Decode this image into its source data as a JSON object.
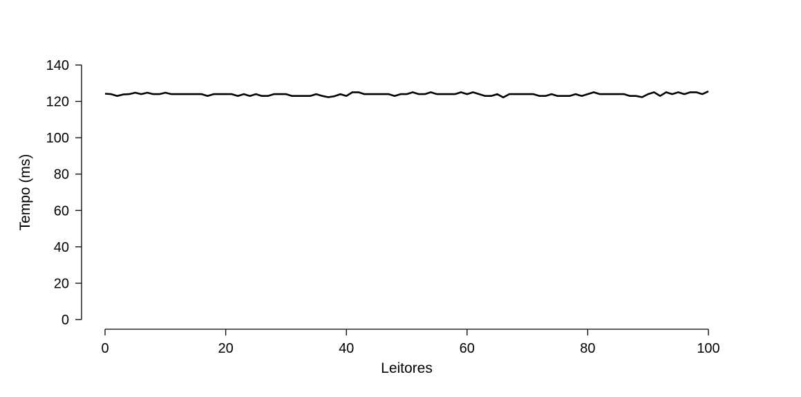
{
  "chart_data": {
    "type": "line",
    "title": "",
    "xlabel": "Leitores",
    "ylabel": "Tempo (ms)",
    "xlim": [
      0,
      100
    ],
    "ylim": [
      0,
      140
    ],
    "xticks": [
      0,
      20,
      40,
      60,
      80,
      100
    ],
    "yticks": [
      0,
      20,
      40,
      60,
      80,
      100,
      120,
      140
    ],
    "xtick_labels": [
      "0",
      "20",
      "40",
      "60",
      "80",
      "100"
    ],
    "ytick_labels": [
      "0",
      "20",
      "40",
      "60",
      "80",
      "100",
      "120",
      "140"
    ],
    "grid": false,
    "line_color": "#000000",
    "series": [
      {
        "x": [
          0,
          1,
          2,
          3,
          4,
          5,
          6,
          7,
          8,
          9,
          10,
          11,
          12,
          13,
          14,
          15,
          16,
          17,
          18,
          19,
          20,
          21,
          22,
          23,
          24,
          25,
          26,
          27,
          28,
          29,
          30,
          31,
          32,
          33,
          34,
          35,
          36,
          37,
          38,
          39,
          40,
          41,
          42,
          43,
          44,
          45,
          46,
          47,
          48,
          49,
          50,
          51,
          52,
          53,
          54,
          55,
          56,
          57,
          58,
          59,
          60,
          61,
          62,
          63,
          64,
          65,
          66,
          67,
          68,
          69,
          70,
          71,
          72,
          73,
          74,
          75,
          76,
          77,
          78,
          79,
          80,
          81,
          82,
          83,
          84,
          85,
          86,
          87,
          88,
          89,
          90,
          91,
          92,
          93,
          94,
          95,
          96,
          97,
          98,
          99,
          100
        ],
        "values": [
          124.2,
          124.0,
          123.0,
          123.8,
          124.0,
          124.8,
          124.0,
          124.8,
          124.0,
          124.0,
          124.8,
          124.0,
          124.0,
          124.0,
          124.0,
          124.0,
          124.0,
          123.0,
          124.0,
          124.0,
          124.0,
          124.0,
          123.0,
          124.0,
          123.0,
          124.0,
          123.0,
          123.0,
          124.0,
          124.0,
          124.0,
          123.0,
          123.0,
          123.0,
          123.0,
          124.0,
          123.0,
          122.3,
          122.8,
          124.0,
          123.0,
          125.0,
          125.0,
          124.0,
          124.0,
          124.0,
          124.0,
          124.0,
          123.0,
          124.0,
          124.0,
          125.0,
          124.0,
          124.0,
          125.0,
          124.0,
          124.0,
          124.0,
          124.0,
          125.0,
          124.0,
          125.0,
          124.0,
          123.0,
          123.0,
          124.0,
          122.2,
          124.0,
          124.0,
          124.0,
          124.0,
          124.0,
          123.0,
          123.0,
          124.0,
          123.0,
          123.0,
          123.0,
          124.0,
          123.0,
          124.0,
          125.0,
          124.0,
          124.0,
          124.0,
          124.0,
          124.0,
          123.0,
          123.0,
          122.3,
          124.0,
          125.0,
          123.0,
          125.0,
          124.0,
          125.0,
          124.0,
          125.0,
          125.0,
          124.0,
          125.5
        ]
      }
    ]
  }
}
